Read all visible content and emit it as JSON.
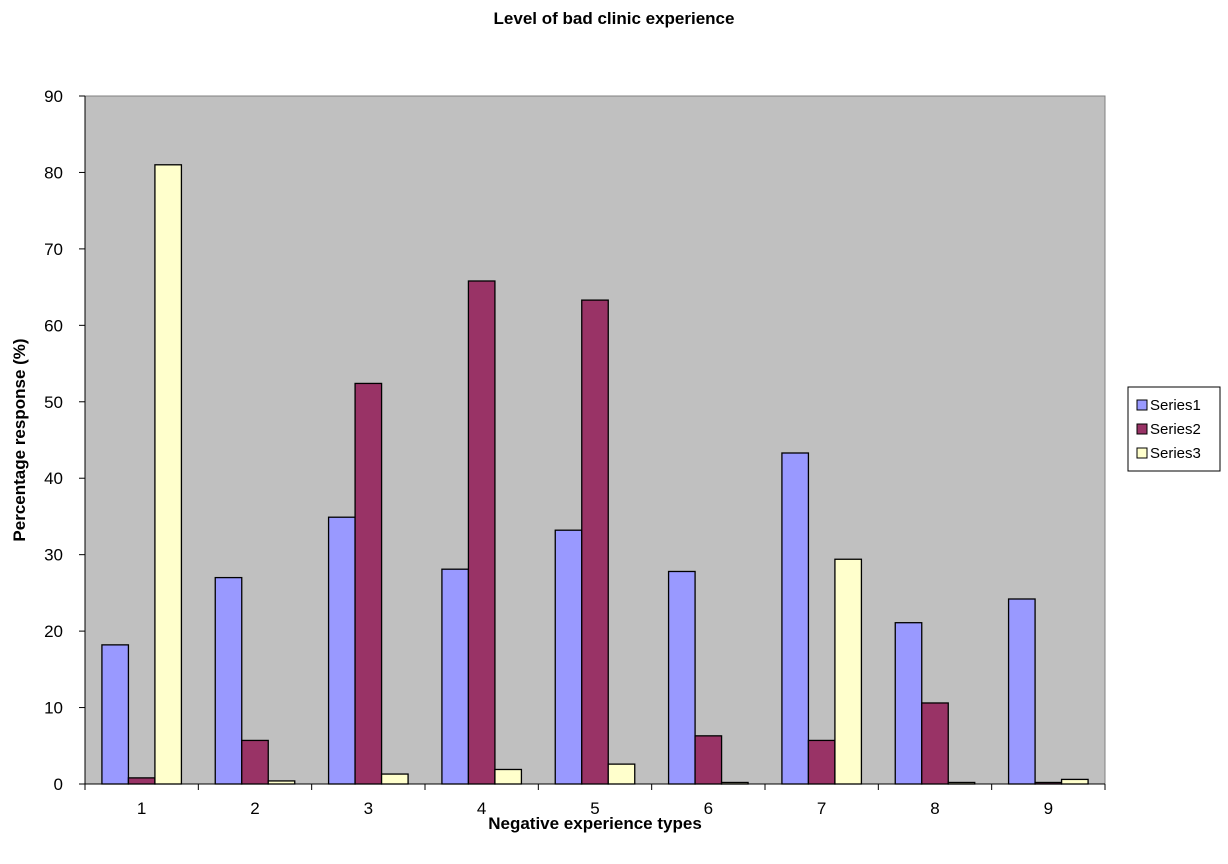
{
  "chart_data": {
    "type": "bar",
    "title": "Level of bad clinic experience",
    "xlabel": "Negative experience types",
    "ylabel": "Percentage response (%)",
    "ylim": [
      0,
      90
    ],
    "yticks": [
      0,
      10,
      20,
      30,
      40,
      50,
      60,
      70,
      80,
      90
    ],
    "categories": [
      "1",
      "2",
      "3",
      "4",
      "5",
      "6",
      "7",
      "8",
      "9"
    ],
    "grid": false,
    "plot_background": "#c0c0c0",
    "legend_position": "right",
    "series": [
      {
        "name": "Series1",
        "color": "#9999ff",
        "values": [
          18.2,
          27.0,
          34.9,
          28.1,
          33.2,
          27.8,
          43.3,
          21.1,
          24.2
        ]
      },
      {
        "name": "Series2",
        "color": "#993366",
        "values": [
          0.8,
          5.7,
          52.4,
          65.8,
          63.3,
          6.3,
          5.7,
          10.6,
          0.2
        ]
      },
      {
        "name": "Series3",
        "color": "#ffffcc",
        "values": [
          81.0,
          0.4,
          1.3,
          1.9,
          2.6,
          0.2,
          29.4,
          0.2,
          0.6
        ]
      }
    ]
  }
}
